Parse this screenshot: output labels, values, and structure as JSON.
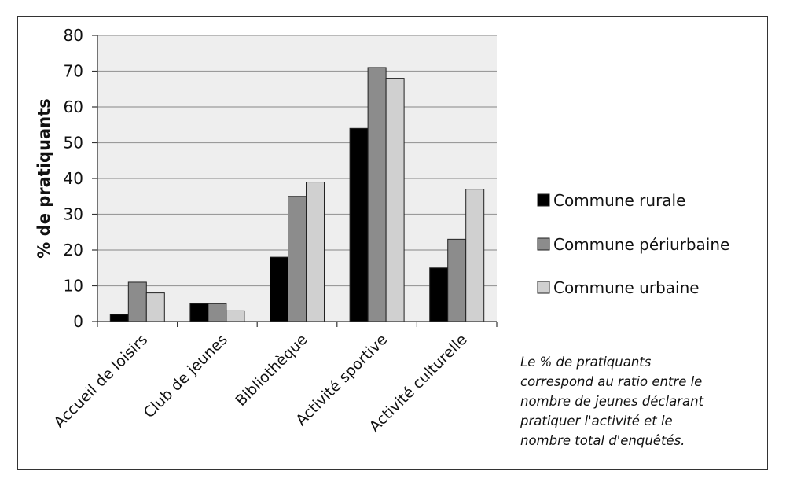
{
  "chart_data": {
    "type": "bar",
    "title": "",
    "xlabel": "",
    "ylabel": "% de pratiquants",
    "ylim": [
      0,
      80
    ],
    "yticks": [
      0,
      10,
      20,
      30,
      40,
      50,
      60,
      70,
      80
    ],
    "grid": true,
    "legend_position": "right",
    "categories": [
      "Accueil de loisirs",
      "Club de jeunes",
      "Bibliothèque",
      "Activité sportive",
      "Activité culturelle"
    ],
    "series": [
      {
        "name": "Commune rurale",
        "color": "#000000",
        "values": [
          2,
          5,
          18,
          54,
          15
        ]
      },
      {
        "name": "Commune périurbaine",
        "color": "#8c8c8c",
        "values": [
          11,
          5,
          35,
          71,
          23
        ]
      },
      {
        "name": "Commune urbaine",
        "color": "#d0d0d0",
        "values": [
          8,
          3,
          39,
          68,
          37
        ]
      }
    ],
    "annotation": "Le % de pratiquants\ncorrespond au ratio entre le\nnombre de jeunes déclarant\npratiquer l'activité et le\nnombre total d'enquêtés.",
    "colors": {
      "plot_background": "#eeeeee",
      "gridline": "#9a9a9a",
      "bar_stroke": "#222222"
    }
  }
}
